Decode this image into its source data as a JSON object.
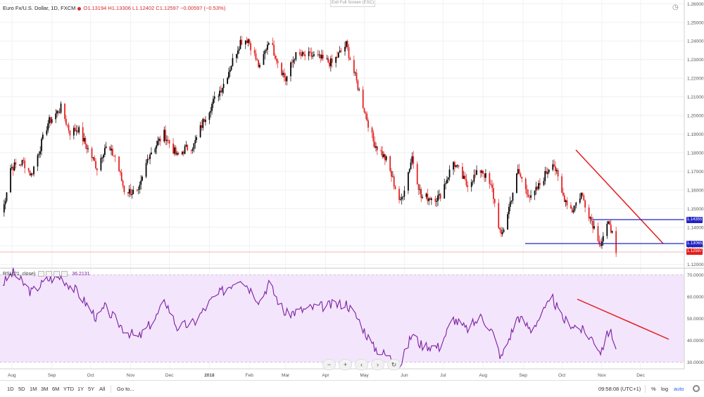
{
  "header": {
    "symbol_title": "Euro Fx/U.S. Dollar, 1D, FXCM",
    "exit_fullscreen": "Exit Full Screen (ESC)",
    "ohlc": "O1.13194 H1.13306 L1.12402 C1.12597 −0.00597 (−0.53%)"
  },
  "rsi_header": {
    "label": "RSI (21, close)",
    "value": "36.2131"
  },
  "price_tags": [
    {
      "text": "1.14355",
      "color": "#2323c8"
    },
    {
      "text": "1.13065",
      "color": "#2323c8"
    },
    {
      "text": "1.12597",
      "color": "#e51c1c"
    }
  ],
  "nav": {
    "zoom_out": "−",
    "zoom_in": "+",
    "scroll_left": "‹",
    "scroll_right": "›",
    "reset": "↻"
  },
  "toolbar": {
    "ranges": [
      "1D",
      "5D",
      "1M",
      "3M",
      "6M",
      "YTD",
      "1Y",
      "5Y",
      "All"
    ],
    "goto": "Go to...",
    "time": "09:58:08 (UTC+1)",
    "percent": "%",
    "log": "log",
    "auto": "auto"
  },
  "colors": {
    "up": "#000000",
    "down": "#e51c1c",
    "rsi_line": "#7b1fa2",
    "rsi_band": "#f3e5fc",
    "trendline": "#e51c1c",
    "support": "#2323c8"
  },
  "chart_data": [
    {
      "type": "candlestick",
      "title": "Euro Fx/U.S. Dollar, 1D, FXCM",
      "y_ticks": [
        "1.12000",
        "1.13000",
        "1.14000",
        "1.15000",
        "1.16000",
        "1.17000",
        "1.18000",
        "1.19000",
        "1.20000",
        "1.21000",
        "1.22000",
        "1.23000",
        "1.24000",
        "1.25000",
        "1.26000"
      ],
      "ylim": [
        1.118,
        1.262
      ],
      "x_ticks": [
        "Aug",
        "Sep",
        "Oct",
        "Nov",
        "Dec",
        "2018",
        "Feb",
        "Mar",
        "Apr",
        "May",
        "Jun",
        "Jul",
        "Aug",
        "Sep",
        "Oct",
        "Nov",
        "Dec"
      ],
      "approx_closes": [
        {
          "date": "2017-07-25",
          "close": 1.148
        },
        {
          "date": "2017-07-31",
          "close": 1.172
        },
        {
          "date": "2017-08-10",
          "close": 1.175
        },
        {
          "date": "2017-08-16",
          "close": 1.168
        },
        {
          "date": "2017-08-29",
          "close": 1.196
        },
        {
          "date": "2017-09-08",
          "close": 1.204
        },
        {
          "date": "2017-09-15",
          "close": 1.191
        },
        {
          "date": "2017-09-21",
          "close": 1.193
        },
        {
          "date": "2017-10-06",
          "close": 1.172
        },
        {
          "date": "2017-10-12",
          "close": 1.183
        },
        {
          "date": "2017-10-20",
          "close": 1.178
        },
        {
          "date": "2017-10-27",
          "close": 1.16
        },
        {
          "date": "2017-11-07",
          "close": 1.158
        },
        {
          "date": "2017-11-15",
          "close": 1.179
        },
        {
          "date": "2017-11-27",
          "close": 1.19
        },
        {
          "date": "2017-12-07",
          "close": 1.178
        },
        {
          "date": "2017-12-13",
          "close": 1.182
        },
        {
          "date": "2017-12-20",
          "close": 1.184
        },
        {
          "date": "2017-12-29",
          "close": 1.2
        },
        {
          "date": "2018-01-12",
          "close": 1.217
        },
        {
          "date": "2018-01-25",
          "close": 1.24
        },
        {
          "date": "2018-01-31",
          "close": 1.241
        },
        {
          "date": "2018-02-09",
          "close": 1.225
        },
        {
          "date": "2018-02-16",
          "close": 1.241
        },
        {
          "date": "2018-03-01",
          "close": 1.219
        },
        {
          "date": "2018-03-08",
          "close": 1.232
        },
        {
          "date": "2018-03-22",
          "close": 1.232
        },
        {
          "date": "2018-04-06",
          "close": 1.228
        },
        {
          "date": "2018-04-17",
          "close": 1.238
        },
        {
          "date": "2018-04-27",
          "close": 1.213
        },
        {
          "date": "2018-05-08",
          "close": 1.186
        },
        {
          "date": "2018-05-18",
          "close": 1.176
        },
        {
          "date": "2018-05-29",
          "close": 1.153
        },
        {
          "date": "2018-06-07",
          "close": 1.178
        },
        {
          "date": "2018-06-14",
          "close": 1.156
        },
        {
          "date": "2018-06-28",
          "close": 1.156
        },
        {
          "date": "2018-07-09",
          "close": 1.175
        },
        {
          "date": "2018-07-19",
          "close": 1.163
        },
        {
          "date": "2018-07-31",
          "close": 1.171
        },
        {
          "date": "2018-08-08",
          "close": 1.16
        },
        {
          "date": "2018-08-15",
          "close": 1.134
        },
        {
          "date": "2018-08-28",
          "close": 1.17
        },
        {
          "date": "2018-09-07",
          "close": 1.155
        },
        {
          "date": "2018-09-14",
          "close": 1.163
        },
        {
          "date": "2018-09-24",
          "close": 1.176
        },
        {
          "date": "2018-10-01",
          "close": 1.158
        },
        {
          "date": "2018-10-09",
          "close": 1.149
        },
        {
          "date": "2018-10-16",
          "close": 1.158
        },
        {
          "date": "2018-10-26",
          "close": 1.14
        },
        {
          "date": "2018-10-31",
          "close": 1.131
        },
        {
          "date": "2018-11-07",
          "close": 1.143
        },
        {
          "date": "2018-11-12",
          "close": 1.126
        }
      ]
    },
    {
      "type": "line",
      "title": "RSI (21, close)",
      "y_ticks": [
        "30.0000",
        "40.0000",
        "50.0000",
        "60.0000",
        "70.0000"
      ],
      "ylim": [
        27,
        73
      ],
      "approx_values": [
        {
          "date": "2017-07-25",
          "value": 66
        },
        {
          "date": "2017-08-02",
          "value": 71
        },
        {
          "date": "2017-08-16",
          "value": 62
        },
        {
          "date": "2017-08-29",
          "value": 68
        },
        {
          "date": "2017-09-08",
          "value": 69
        },
        {
          "date": "2017-09-21",
          "value": 62
        },
        {
          "date": "2017-10-06",
          "value": 50
        },
        {
          "date": "2017-10-12",
          "value": 55
        },
        {
          "date": "2017-10-27",
          "value": 45
        },
        {
          "date": "2017-11-07",
          "value": 41
        },
        {
          "date": "2017-11-20",
          "value": 50
        },
        {
          "date": "2017-11-28",
          "value": 58
        },
        {
          "date": "2017-12-07",
          "value": 46
        },
        {
          "date": "2017-12-20",
          "value": 48
        },
        {
          "date": "2018-01-02",
          "value": 58
        },
        {
          "date": "2018-01-10",
          "value": 62
        },
        {
          "date": "2018-01-25",
          "value": 69
        },
        {
          "date": "2018-02-09",
          "value": 58
        },
        {
          "date": "2018-02-16",
          "value": 66
        },
        {
          "date": "2018-03-01",
          "value": 52
        },
        {
          "date": "2018-03-22",
          "value": 55
        },
        {
          "date": "2018-04-17",
          "value": 57
        },
        {
          "date": "2018-04-27",
          "value": 49
        },
        {
          "date": "2018-05-08",
          "value": 37
        },
        {
          "date": "2018-05-29",
          "value": 29
        },
        {
          "date": "2018-06-07",
          "value": 43
        },
        {
          "date": "2018-06-14",
          "value": 38
        },
        {
          "date": "2018-06-28",
          "value": 37
        },
        {
          "date": "2018-07-09",
          "value": 50
        },
        {
          "date": "2018-07-19",
          "value": 45
        },
        {
          "date": "2018-07-31",
          "value": 51
        },
        {
          "date": "2018-08-08",
          "value": 44
        },
        {
          "date": "2018-08-15",
          "value": 32
        },
        {
          "date": "2018-08-28",
          "value": 51
        },
        {
          "date": "2018-09-07",
          "value": 45
        },
        {
          "date": "2018-09-24",
          "value": 59
        },
        {
          "date": "2018-10-01",
          "value": 50
        },
        {
          "date": "2018-10-16",
          "value": 45
        },
        {
          "date": "2018-10-26",
          "value": 40
        },
        {
          "date": "2018-10-31",
          "value": 35
        },
        {
          "date": "2018-11-07",
          "value": 45
        },
        {
          "date": "2018-11-12",
          "value": 36
        }
      ]
    }
  ]
}
